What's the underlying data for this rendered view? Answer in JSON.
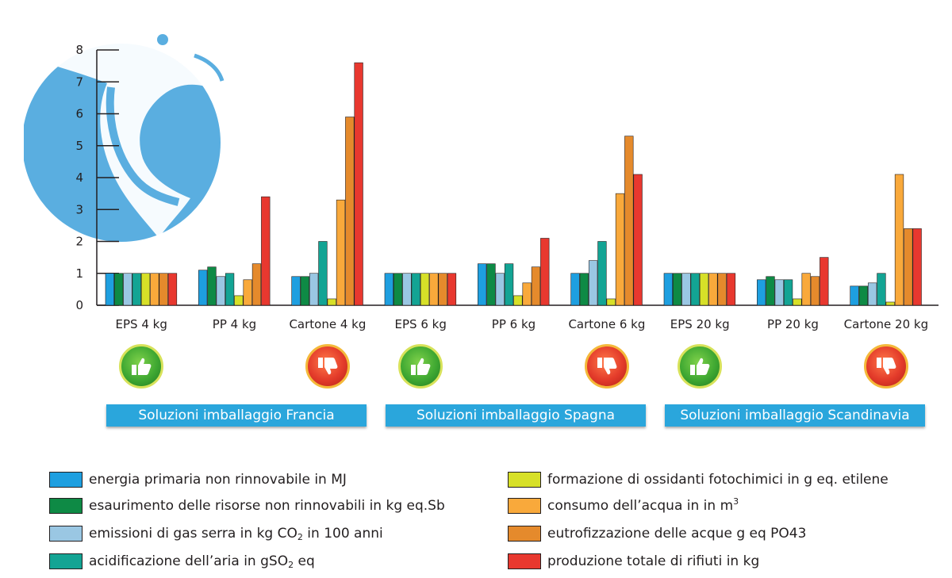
{
  "colors": {
    "energia": "#1e9fe0",
    "esaurimento": "#0e8a45",
    "gas_serra": "#9ac7e3",
    "acidificazione": "#13a494",
    "ossidanti": "#d7e028",
    "acqua": "#f9a93b",
    "eutrofizzazione": "#e58a2c",
    "rifiuti": "#e8382f",
    "region_banner": "#2aa6dc",
    "logo": "#5aaee0"
  },
  "chart_data": {
    "type": "bar",
    "ylim": [
      0,
      8
    ],
    "yticks": [
      "0",
      "1",
      "2",
      "3",
      "4",
      "5",
      "6",
      "7",
      "8"
    ],
    "categories": [
      "EPS 4 kg",
      "PP 4 kg",
      "Cartone 4 kg",
      "EPS 6 kg",
      "PP 6 kg",
      "Cartone 6 kg",
      "EPS 20 kg",
      "PP 20 kg",
      "Cartone 20 kg"
    ],
    "series": [
      {
        "key": "energia",
        "values": [
          1,
          1.1,
          0.9,
          1,
          1.3,
          1,
          1,
          0.8,
          0.6
        ]
      },
      {
        "key": "esaurimento",
        "values": [
          1,
          1.2,
          0.9,
          1,
          1.3,
          1,
          1,
          0.9,
          0.6
        ]
      },
      {
        "key": "gas_serra",
        "values": [
          1,
          0.9,
          1.0,
          1,
          1.0,
          1.4,
          1,
          0.8,
          0.7
        ]
      },
      {
        "key": "acidificazione",
        "values": [
          1,
          1.0,
          2.0,
          1,
          1.3,
          2.0,
          1,
          0.8,
          1.0
        ]
      },
      {
        "key": "ossidanti",
        "values": [
          1,
          0.3,
          0.2,
          1,
          0.3,
          0.2,
          1,
          0.2,
          0.1
        ]
      },
      {
        "key": "acqua",
        "values": [
          1,
          0.8,
          3.3,
          1,
          0.7,
          3.5,
          1,
          1.0,
          4.1
        ]
      },
      {
        "key": "eutrofizzazione",
        "values": [
          1,
          1.3,
          5.9,
          1,
          1.2,
          5.3,
          1,
          0.9,
          2.4
        ]
      },
      {
        "key": "rifiuti",
        "values": [
          1,
          3.4,
          7.6,
          1,
          2.1,
          4.1,
          1,
          1.5,
          2.4
        ]
      }
    ]
  },
  "ratings": [
    {
      "category_index": 0,
      "type": "up",
      "icon": "thumbs-up-icon"
    },
    {
      "category_index": 2,
      "type": "down",
      "icon": "thumbs-down-icon"
    },
    {
      "category_index": 3,
      "type": "up",
      "icon": "thumbs-up-icon"
    },
    {
      "category_index": 5,
      "type": "down",
      "icon": "thumbs-down-icon"
    },
    {
      "category_index": 6,
      "type": "up",
      "icon": "thumbs-up-icon"
    },
    {
      "category_index": 8,
      "type": "down",
      "icon": "thumbs-down-icon"
    }
  ],
  "regions": [
    {
      "label": "Soluzioni imballaggio Francia"
    },
    {
      "label": "Soluzioni imballaggio Spagna"
    },
    {
      "label": "Soluzioni imballaggio Scandinavia"
    }
  ],
  "legend": {
    "energia": {
      "text": "energia primaria non rinnovabile in MJ"
    },
    "esaurimento": {
      "text": "esaurimento delle risorse non rinnovabili in kg eq.Sb"
    },
    "gas_serra": {
      "pre": "emissioni di gas serra in kg CO",
      "sub": "2",
      "post": " in 100 anni"
    },
    "acidificazione": {
      "pre": "acidificazione dell’aria in gSO",
      "sub": "2",
      "post": " eq"
    },
    "ossidanti": {
      "text": "formazione di ossidanti fotochimici in g eq. etilene"
    },
    "acqua": {
      "pre": "consumo dell’acqua in in m",
      "sup": "3"
    },
    "eutrofizzazione": {
      "text": "eutrofizzazione delle acque g eq PO43"
    },
    "rifiuti": {
      "text": "produzione totale di rifiuti in kg"
    }
  },
  "logo_icon": "fish-logo-icon"
}
